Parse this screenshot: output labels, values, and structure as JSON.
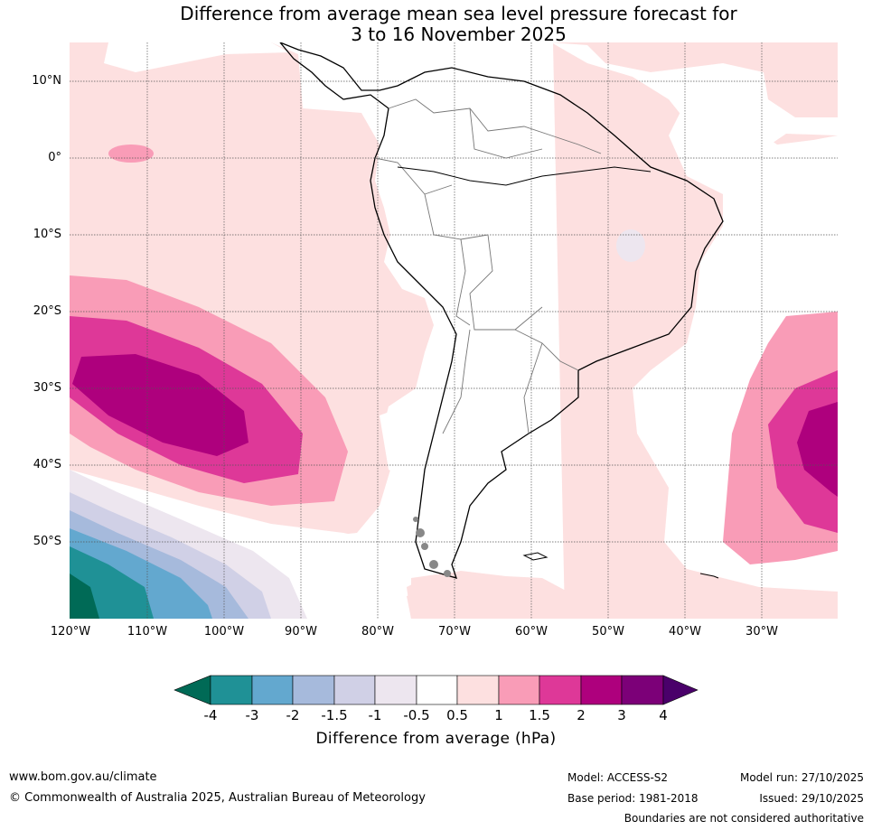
{
  "title_line1": "Difference from average mean sea level pressure forecast for",
  "title_line2": "3 to 16 November 2025",
  "lat_labels": [
    "10°N",
    "0°",
    "10°S",
    "20°S",
    "30°S",
    "40°S",
    "50°S"
  ],
  "lon_labels": [
    "120°W",
    "110°W",
    "100°W",
    "90°W",
    "80°W",
    "70°W",
    "60°W",
    "50°W",
    "40°W",
    "30°W"
  ],
  "colorbar": {
    "title": "Difference from average (hPa)",
    "tick_labels": [
      "-4",
      "-3",
      "-2",
      "-1.5",
      "-1",
      "-0.5",
      "0.5",
      "1",
      "1.5",
      "2",
      "3",
      "4"
    ],
    "colors": [
      "#006a56",
      "#1f9196",
      "#63a8cf",
      "#a6badc",
      "#d0d0e6",
      "#ede6ef",
      "#ffffff",
      "#fde0e0",
      "#f99cb7",
      "#de3898",
      "#ae007d",
      "#7c0078",
      "#4a006a"
    ]
  },
  "footer": {
    "website": "www.bom.gov.au/climate",
    "copyright": "© Commonwealth of Australia 2025, Australian Bureau of Meteorology",
    "model": "Model: ACCESS-S2",
    "base_period": "Base period: 1981-2018",
    "model_run": "Model run: 27/10/2025",
    "issued": "Issued: 29/10/2025",
    "disclaimer": "Boundaries are not considered authoritative"
  }
}
